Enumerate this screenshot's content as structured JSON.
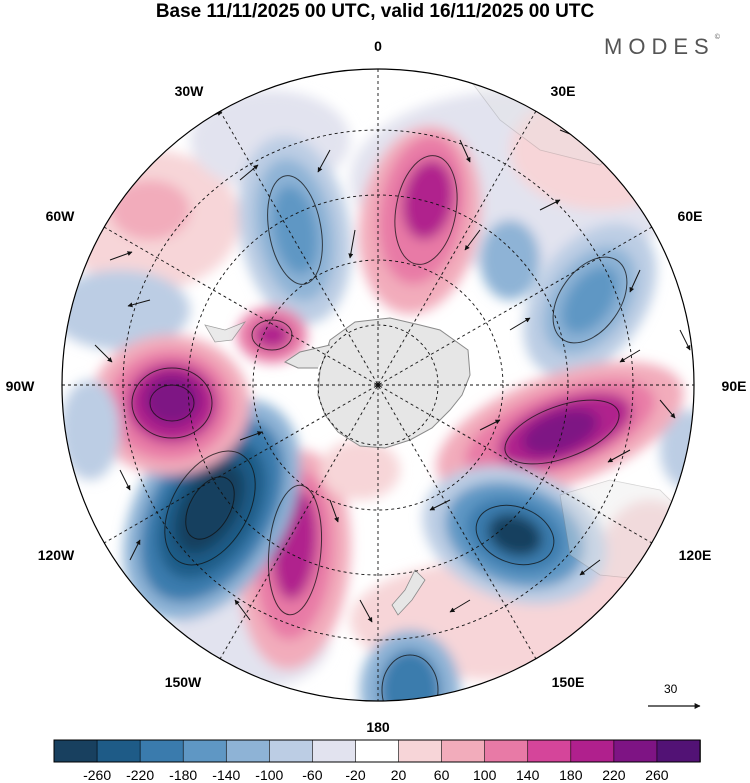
{
  "title": "Base 11/11/2025 00 UTC, valid 16/11/2025 00 UTC",
  "brand": "MODES",
  "brand_mark": "©",
  "longitude_labels": {
    "lon_0": "0",
    "lon_30e": "30E",
    "lon_60e": "60E",
    "lon_90e": "90E",
    "lon_120e": "120E",
    "lon_150e": "150E",
    "lon_180": "180",
    "lon_150w": "150W",
    "lon_120w": "120W",
    "lon_90w": "90W",
    "lon_60w": "60W",
    "lon_30w": "30W"
  },
  "vector_scale_label": "30",
  "colorbar": {
    "colors": [
      "#18405f",
      "#1e5b87",
      "#3a7bad",
      "#5f97c4",
      "#8eb3d6",
      "#bccde4",
      "#e2e3ef",
      "#ffffff",
      "#f7d5d8",
      "#f2acbb",
      "#e87aa6",
      "#d5459a",
      "#b0208d",
      "#7e1484",
      "#521275"
    ],
    "ticks": [
      "-260",
      "-220",
      "-180",
      "-140",
      "-100",
      "-60",
      "-20",
      "20",
      "60",
      "100",
      "140",
      "180",
      "220",
      "260"
    ]
  },
  "colors": {
    "antarctica": "#e6e6e6",
    "coast": "#8a8a8a"
  }
}
